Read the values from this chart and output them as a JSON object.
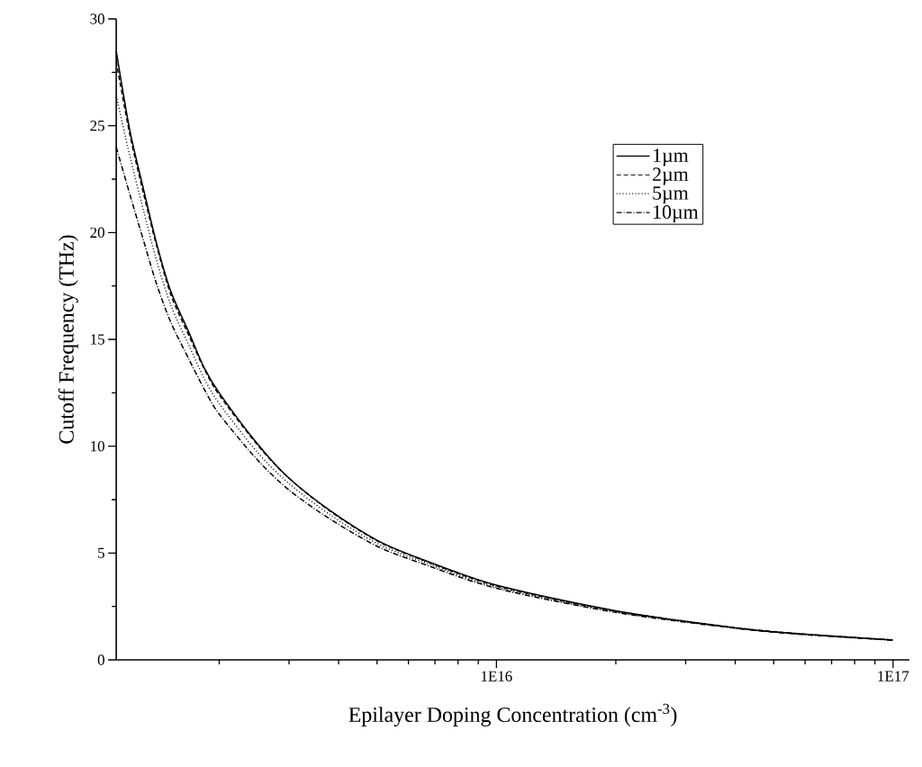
{
  "chart_data": {
    "type": "line",
    "xlabel": "Epilayer Doping Concentration (cm$^{-3}$)",
    "ylabel": "Cutoff Frequency (THz)",
    "x": [
      1100000000000000.0,
      1190000000000000.0,
      1290000000000000.0,
      1390000000000000.0,
      1510000000000000.0,
      1680000000000000.0,
      1830000000000000.0,
      2000000000000000.0,
      2500000000000000.0,
      3000000000000000.0,
      3800000000000000.0,
      5000000000000000.0,
      6400000000000000.0,
      1e+16,
      2e+16,
      4e+16,
      6e+16,
      1e+17
    ],
    "series": [
      {
        "name": "1µm",
        "color": "#000000",
        "line_style": "solid",
        "values": [
          28.5,
          24.8,
          22.0,
          19.5,
          17.25,
          15.3,
          13.7,
          12.5,
          10.1,
          8.5,
          7.0,
          5.6,
          4.75,
          3.5,
          2.3,
          1.5,
          1.2,
          0.93
        ]
      },
      {
        "name": "2µm",
        "color": "#000000",
        "line_style": "dashed",
        "values": [
          28.0,
          24.6,
          21.8,
          19.4,
          17.1,
          15.15,
          13.65,
          12.4,
          10.05,
          8.5,
          6.97,
          5.57,
          4.73,
          3.46,
          2.28,
          1.51,
          1.2,
          0.93
        ]
      },
      {
        "name": "5µm",
        "color": "#000000",
        "line_style": "dotted",
        "values": [
          26.4,
          23.6,
          21.0,
          18.7,
          16.6,
          14.7,
          13.2,
          12.0,
          9.7,
          8.25,
          6.8,
          5.45,
          4.65,
          3.4,
          2.25,
          1.5,
          1.19,
          0.93
        ]
      },
      {
        "name": "10µm",
        "color": "#000000",
        "line_style": "dashdot",
        "values": [
          24.0,
          21.8,
          19.6,
          17.6,
          15.8,
          14.05,
          12.7,
          11.5,
          9.35,
          7.95,
          6.6,
          5.32,
          4.55,
          3.35,
          2.22,
          1.48,
          1.18,
          0.92
        ]
      }
    ],
    "log": "x",
    "xlim": [
      1100000000000000.0,
      1.1e+17
    ],
    "ylim": [
      0,
      30
    ],
    "xticks": [
      {
        "value": 2000000000000000.0,
        "label": null
      },
      {
        "value": 3000000000000000.0,
        "label": null
      },
      {
        "value": 4000000000000000.0,
        "label": null
      },
      {
        "value": 5000000000000000.0,
        "label": null
      },
      {
        "value": 6000000000000000.0,
        "label": null
      },
      {
        "value": 7000000000000000.0,
        "label": null
      },
      {
        "value": 8000000000000000.0,
        "label": null
      },
      {
        "value": 9000000000000000.0,
        "label": null
      },
      {
        "value": 1e+16,
        "label": "1E16"
      },
      {
        "value": 2e+16,
        "label": null
      },
      {
        "value": 3e+16,
        "label": null
      },
      {
        "value": 4e+16,
        "label": null
      },
      {
        "value": 5e+16,
        "label": null
      },
      {
        "value": 6e+16,
        "label": null
      },
      {
        "value": 7e+16,
        "label": null
      },
      {
        "value": 8e+16,
        "label": null
      },
      {
        "value": 9e+16,
        "label": null
      },
      {
        "value": 1e+17,
        "label": "1E17"
      }
    ],
    "yticks": [
      0,
      {
        "value": 2.5,
        "label": null
      },
      5,
      {
        "value": 7.5,
        "label": null
      },
      10,
      {
        "value": 12.5,
        "label": null
      },
      15,
      {
        "value": 17.5,
        "label": null
      },
      20,
      {
        "value": 22.5,
        "label": null
      },
      25,
      {
        "value": 27.5,
        "label": null
      },
      30
    ],
    "grid": false,
    "legend": "top right",
    "marker": "none"
  }
}
